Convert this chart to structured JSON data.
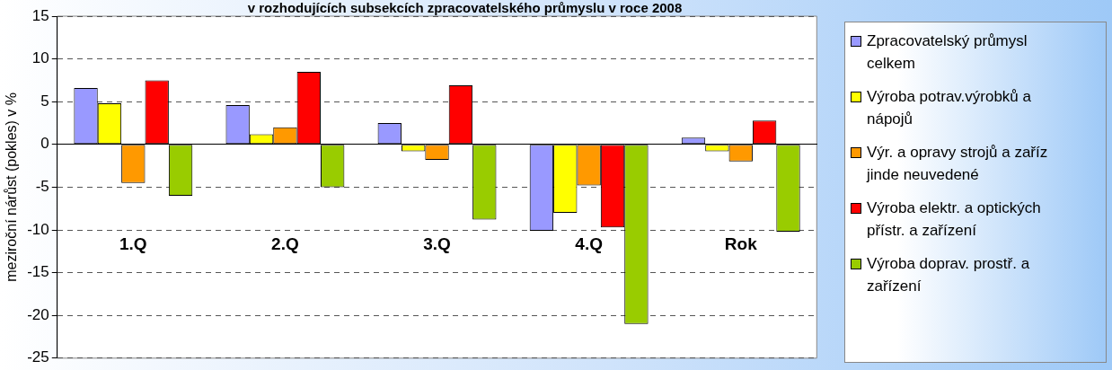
{
  "chart_data": {
    "type": "bar",
    "title": "v rozhodujících subsekcích zpracovatelského průmyslu v roce 2008",
    "ylabel": "meziroční nárůst (pokles) v %",
    "categories": [
      "1.Q",
      "2.Q",
      "3.Q",
      "4.Q",
      "Rok"
    ],
    "series": [
      {
        "name": "Zpracovatelský průmysl celkem",
        "color": "#9999ff",
        "values": [
          6.6,
          4.6,
          2.5,
          -10.1,
          0.8
        ]
      },
      {
        "name": "Výroba potrav.výrobků a nápojů",
        "color": "#ffff00",
        "values": [
          4.8,
          1.2,
          -0.8,
          -8.0,
          -0.8
        ]
      },
      {
        "name": "Výr. a opravy strojů a zaříz jinde neuvedené",
        "color": "#ff9900",
        "values": [
          -4.5,
          2.0,
          -1.8,
          -4.8,
          -2.0
        ]
      },
      {
        "name": "Výroba elektr. a optických přístr. a zařízení",
        "color": "#ff0000",
        "values": [
          7.5,
          8.5,
          6.9,
          -9.7,
          2.8
        ]
      },
      {
        "name": "Výroba doprav. prostř. a zařízení",
        "color": "#99cc00",
        "values": [
          -6.0,
          -5.0,
          -8.8,
          -21.0,
          -10.2
        ]
      }
    ],
    "ylim": [
      -25,
      15
    ],
    "yticks": [
      -25,
      -20,
      -15,
      -10,
      -5,
      0,
      5,
      10,
      15
    ],
    "grid": "y",
    "legend": "right"
  }
}
